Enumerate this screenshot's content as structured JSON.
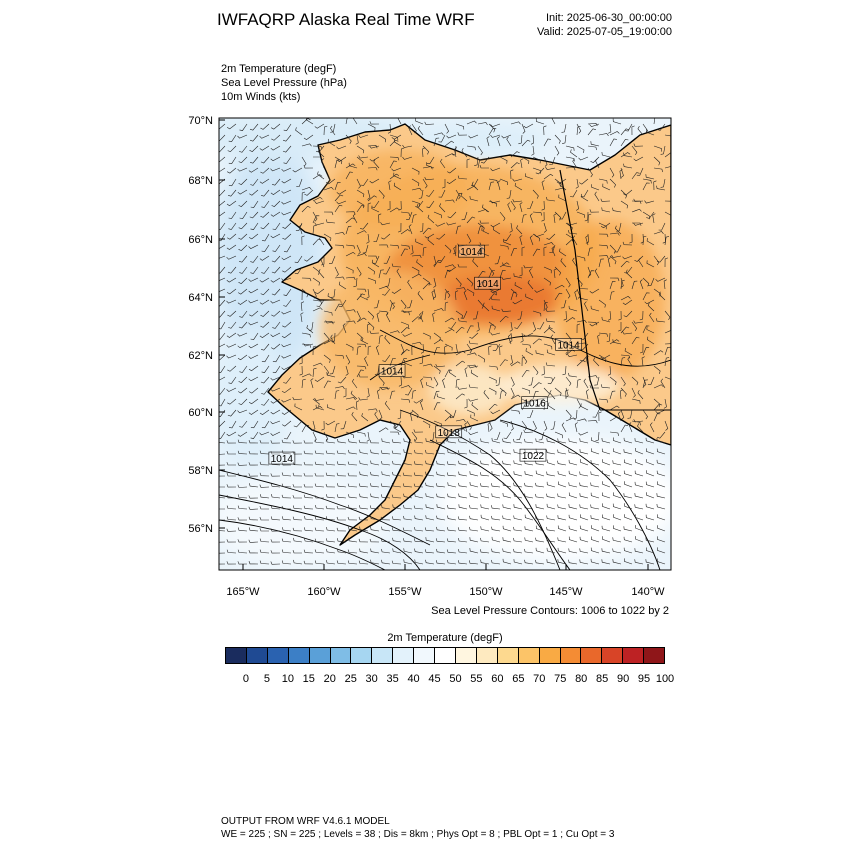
{
  "header": {
    "title": "IWFAQRP Alaska Real Time WRF",
    "init": "Init: 2025-06-30_00:00:00",
    "valid": "Valid: 2025-07-05_19:00:00"
  },
  "fields": [
    "2m Temperature   (degF)",
    "Sea Level Pressure   (hPa)",
    "10m Winds   (kts)"
  ],
  "map": {
    "lat_labels": [
      "70°N",
      "68°N",
      "66°N",
      "64°N",
      "62°N",
      "60°N",
      "58°N",
      "56°N"
    ],
    "lon_labels": [
      "165°W",
      "160°W",
      "155°W",
      "150°W",
      "145°W",
      "140°W"
    ],
    "pressure_labels": [
      {
        "text": "1014",
        "lon": -150.9,
        "lat": 65.5
      },
      {
        "text": "1014",
        "lon": -149.9,
        "lat": 64.4
      },
      {
        "text": "1014",
        "lon": -144.9,
        "lat": 62.3
      },
      {
        "text": "1014",
        "lon": -155.8,
        "lat": 61.4
      },
      {
        "text": "1016",
        "lon": -147.0,
        "lat": 60.3
      },
      {
        "text": "1018",
        "lon": -152.3,
        "lat": 59.3
      },
      {
        "text": "1022",
        "lon": -147.1,
        "lat": 58.5
      },
      {
        "text": "1014",
        "lon": -162.6,
        "lat": 58.4
      }
    ],
    "colors": {
      "land_warm": "#f5ae56",
      "land_core": "#ee8a3a",
      "ocean_cool": "#cfe6f7",
      "land_mild": "#fde4b8"
    }
  },
  "contour_note": "Sea Level Pressure Contours: 1006 to 1022 by 2",
  "colorbar": {
    "title": "2m Temperature  (degF)",
    "colors": [
      "#1a2c5e",
      "#1f4a93",
      "#2a62b0",
      "#3c7fc6",
      "#5aa0d8",
      "#7fbde6",
      "#a6d6f1",
      "#c8e6f7",
      "#e3f2fb",
      "#f1f8fd",
      "#ffffff",
      "#fff6e0",
      "#feeac0",
      "#fdd98f",
      "#fcc468",
      "#f9aa44",
      "#f48c34",
      "#e9682b",
      "#d84427",
      "#bd2224",
      "#8f1619"
    ],
    "labels": [
      "0",
      "5",
      "10",
      "15",
      "20",
      "25",
      "30",
      "35",
      "40",
      "45",
      "50",
      "55",
      "60",
      "65",
      "70",
      "75",
      "80",
      "85",
      "90",
      "95",
      "100"
    ]
  },
  "footer": {
    "line1": "OUTPUT FROM WRF V4.6.1 MODEL",
    "line2": "WE = 225 ; SN = 225 ; Levels = 38 ; Dis = 8km ; Phys Opt = 8 ; PBL Opt = 1 ; Cu Opt = 3"
  }
}
